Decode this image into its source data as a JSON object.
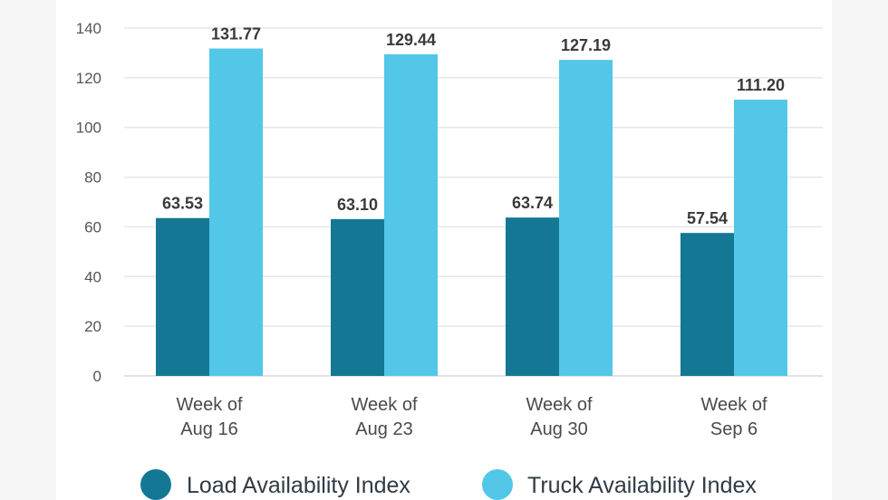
{
  "chart_data": {
    "type": "bar",
    "title": "",
    "xlabel": "",
    "ylabel": "",
    "ylim": [
      0,
      140
    ],
    "yticks": [
      0,
      20,
      40,
      60,
      80,
      100,
      120,
      140
    ],
    "grid": true,
    "legend_position": "bottom",
    "categories": [
      [
        "Week of",
        "Aug 16"
      ],
      [
        "Week of",
        "Aug 23"
      ],
      [
        "Week of",
        "Aug 30"
      ],
      [
        "Week of",
        "Sep 6"
      ]
    ],
    "series": [
      {
        "name": "Load Availability Index",
        "color": "#147894",
        "values": [
          63.53,
          63.1,
          63.74,
          57.54
        ],
        "labels": [
          "63.53",
          "63.10",
          "63.74",
          "57.54"
        ]
      },
      {
        "name": "Truck Availability Index",
        "color": "#52c7e8",
        "values": [
          131.77,
          129.44,
          127.19,
          111.2
        ],
        "labels": [
          "131.77",
          "129.44",
          "127.19",
          "111.20"
        ]
      }
    ]
  }
}
